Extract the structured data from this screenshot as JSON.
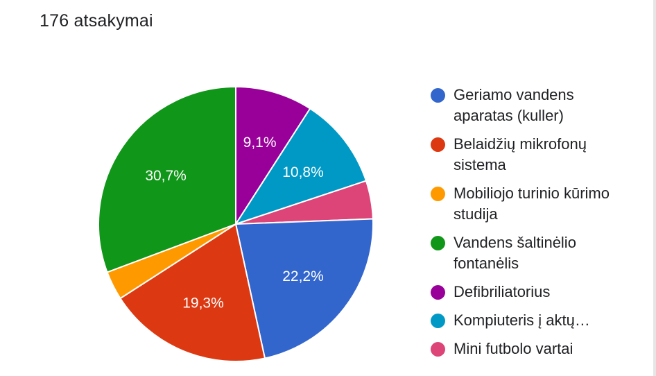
{
  "header": {
    "responses_label": "176 atsakymai"
  },
  "chart_data": {
    "type": "pie",
    "title": "",
    "start_angle_deg": 0,
    "direction": "clockwise",
    "legend_position": "right",
    "slices": [
      {
        "name": "Defibriliatorius",
        "value": 9.1,
        "label": "9,1%",
        "color": "#990099"
      },
      {
        "name": "Kompiuteris į aktų…",
        "value": 10.8,
        "label": "10,8%",
        "color": "#0099c6"
      },
      {
        "name": "Mini futbolo vartai",
        "value": 4.5,
        "label": "",
        "color": "#dd4477"
      },
      {
        "name": "Geriamo vandens aparatas (kuller)",
        "value": 22.2,
        "label": "22,2%",
        "color": "#3366cc"
      },
      {
        "name": "Belaidžių mikrofonų sistema",
        "value": 19.3,
        "label": "19,3%",
        "color": "#dc3912"
      },
      {
        "name": "Mobiliojo turinio kūrimo studija",
        "value": 3.4,
        "label": "",
        "color": "#ff9900"
      },
      {
        "name": "Vandens šaltinėlio fontanėlis",
        "value": 30.7,
        "label": "30,7%",
        "color": "#109618"
      }
    ],
    "legend": [
      {
        "label": "Geriamo vandens aparatas (kuller)",
        "color": "#3366cc"
      },
      {
        "label": "Belaidžių mikrofonų sistema",
        "color": "#dc3912"
      },
      {
        "label": "Mobiliojo turinio kūrimo studija",
        "color": "#ff9900"
      },
      {
        "label": "Vandens šaltinėlio fontanėlis",
        "color": "#109618"
      },
      {
        "label": "Defibriliatorius",
        "color": "#990099"
      },
      {
        "label": "Kompiuteris į aktų…",
        "color": "#0099c6"
      },
      {
        "label": "Mini futbolo vartai",
        "color": "#dd4477"
      }
    ]
  }
}
